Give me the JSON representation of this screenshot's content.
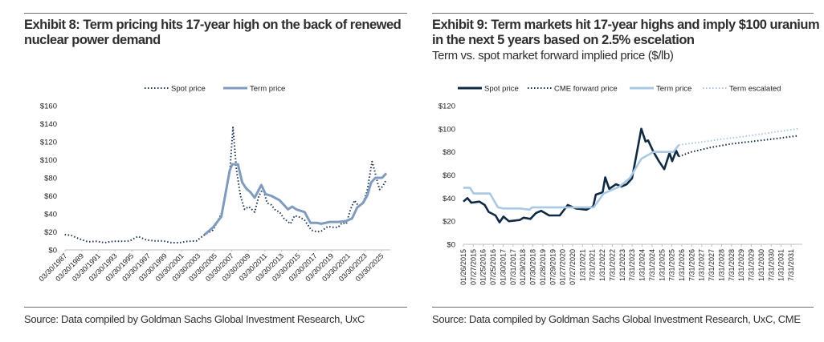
{
  "left": {
    "title": "Exhibit 8: Term pricing hits 17-year high on the back of renewed nuclear power demand",
    "source": "Source: Data compiled by Goldman Sachs Global Investment Research, UxC"
  },
  "right": {
    "title": "Exhibit 9: Term markets hit 17-year highs and imply $100 uranium in the next 5 years based on 2.5% escelation",
    "subtitle": "Term vs. spot market forward implied price ($/lb)",
    "source": "Source: Data compiled by Goldman Sachs Global Investment Research, UxC, CME"
  },
  "chart_data": [
    {
      "type": "line",
      "title": "",
      "xlabel": "",
      "ylabel": "",
      "ylim": [
        0,
        160
      ],
      "yticks": [
        "$0",
        "$20",
        "$40",
        "$60",
        "$80",
        "$100",
        "$120",
        "$140",
        "$160"
      ],
      "xlim": [
        1987.24,
        2025.9
      ],
      "xticks": [
        "03/30/1987",
        "03/30/1989",
        "03/30/1991",
        "03/30/1993",
        "03/30/1995",
        "03/30/1997",
        "03/30/1999",
        "03/30/2001",
        "03/30/2003",
        "03/30/2005",
        "03/30/2007",
        "03/30/2009",
        "03/30/2011",
        "03/30/2013",
        "03/30/2015",
        "03/30/2017",
        "03/30/2019",
        "03/30/2021",
        "03/30/2023",
        "03/30/2025"
      ],
      "grid": false,
      "legend": "top",
      "series": [
        {
          "name": "Spot price",
          "style": "dotted",
          "color": "#1f3550",
          "x": [
            1987.2,
            1988,
            1989,
            1990,
            1991,
            1992,
            1993,
            1994,
            1995,
            1996,
            1997,
            1998,
            1999,
            2000,
            2001,
            2002,
            2003,
            2004,
            2005,
            2006,
            2007,
            2007.4,
            2007.8,
            2008.3,
            2008.8,
            2009.3,
            2010,
            2010.5,
            2011,
            2011.5,
            2012,
            2012.5,
            2013,
            2013.5,
            2014.3,
            2014.8,
            2015.5,
            2016,
            2016.8,
            2017.5,
            2018,
            2018.8,
            2019.5,
            2020,
            2020.5,
            2021,
            2021.5,
            2022,
            2022.5,
            2023,
            2023.5,
            2024.1,
            2024.4,
            2024.8,
            2025,
            2025.4,
            2025.8
          ],
          "y": [
            17,
            16,
            12,
            9,
            9.5,
            8,
            9.5,
            9.5,
            10,
            15,
            11,
            10,
            10,
            8,
            8,
            9.5,
            10,
            17,
            22,
            40,
            85,
            136,
            90,
            60,
            45,
            48,
            42,
            60,
            68,
            52,
            50,
            44,
            42,
            35,
            29,
            38,
            36,
            33,
            22,
            20,
            21,
            26,
            25,
            25,
            30,
            29,
            45,
            55,
            48,
            52,
            65,
            98,
            88,
            73,
            67,
            71,
            78
          ]
        },
        {
          "name": "Term price",
          "style": "solid",
          "color": "#7f9bbd",
          "x": [
            2004,
            2005,
            2006,
            2007,
            2007.3,
            2008,
            2008.5,
            2009,
            2009.5,
            2010,
            2010.8,
            2011.3,
            2012,
            2013,
            2014,
            2014.5,
            2015,
            2016,
            2016.7,
            2017.5,
            2018,
            2019,
            2020,
            2021,
            2021.7,
            2022.3,
            2023,
            2023.5,
            2024,
            2024.5,
            2025.3,
            2025.8
          ],
          "y": [
            17,
            25,
            37,
            88,
            95,
            95,
            75,
            68,
            64,
            58,
            72,
            62,
            60,
            55,
            45,
            48,
            45,
            42,
            30,
            30,
            29,
            31,
            31,
            32,
            35,
            47,
            52,
            60,
            75,
            80,
            80,
            85
          ]
        }
      ]
    },
    {
      "type": "line",
      "title": "Term vs. spot market forward implied price ($/lb)",
      "xlabel": "",
      "ylabel": "",
      "ylim": [
        0,
        120
      ],
      "yticks": [
        "$0",
        "$20",
        "$40",
        "$60",
        "$80",
        "$100",
        "$120"
      ],
      "xlim": [
        2015.07,
        2031.9
      ],
      "xticks": [
        "01/26/2015",
        "07/27/2015",
        "01/25/2016",
        "07/25/2016",
        "01/30/2017",
        "07/31/2017",
        "01/29/2018",
        "07/30/2018",
        "01/28/2019",
        "07/29/2019",
        "01/27/2020",
        "07/27/2020",
        "1/31/2021",
        "7/31/2021",
        "1/31/2022",
        "7/31/2022",
        "1/31/2023",
        "7/31/2023",
        "1/31/2024",
        "7/31/2024",
        "1/31/2025",
        "7/31/2025",
        "1/31/2026",
        "7/31/2026",
        "1/31/2027",
        "7/31/2027",
        "1/31/2028",
        "7/31/2028",
        "1/31/2029",
        "7/31/2029",
        "1/31/2030",
        "7/31/2030",
        "1/31/2031",
        "7/31/2031"
      ],
      "grid": false,
      "legend": "top",
      "series": [
        {
          "name": "Spot price",
          "style": "solid",
          "color": "#102a44",
          "x": [
            2015.07,
            2015.27,
            2015.47,
            2015.87,
            2016.14,
            2016.34,
            2016.68,
            2016.88,
            2017.08,
            2017.35,
            2017.89,
            2018.09,
            2018.43,
            2018.7,
            2018.97,
            2019.37,
            2019.9,
            2020.3,
            2020.71,
            2021.24,
            2021.58,
            2021.71,
            2022.05,
            2022.18,
            2022.38,
            2022.72,
            2022.99,
            2023.26,
            2023.52,
            2023.72,
            2023.99,
            2024.2,
            2024.33,
            2024.6,
            2024.87,
            2025.14,
            2025.4,
            2025.54,
            2025.74,
            2025.87
          ],
          "y": [
            37,
            40,
            36,
            37,
            34,
            28,
            25,
            19,
            24,
            20,
            21,
            23,
            22,
            27,
            29,
            25,
            25,
            34,
            31,
            30,
            33,
            43,
            45,
            58,
            48,
            52,
            50,
            52,
            57,
            75,
            100,
            89,
            90,
            80,
            72,
            65,
            79,
            72,
            81,
            76
          ]
        },
        {
          "name": "CME forward price",
          "style": "dotted",
          "color": "#102a44",
          "x": [
            2025.87,
            2026.5,
            2027.5,
            2028.5,
            2029.5,
            2030.5,
            2031.85
          ],
          "y": [
            76,
            80,
            84,
            87,
            89,
            91,
            94
          ]
        },
        {
          "name": "Term price",
          "style": "solid",
          "color": "#a9c8e4",
          "x": [
            2015.06,
            2015.4,
            2015.58,
            2016.4,
            2016.8,
            2017.07,
            2017.9,
            2018.4,
            2018.5,
            2021.6,
            2022.1,
            2022.9,
            2023.4,
            2023.99,
            2024.6,
            2025.6,
            2025.87
          ],
          "y": [
            49,
            49,
            44,
            44,
            32,
            31,
            31,
            30,
            32,
            32,
            44,
            50,
            57,
            74,
            80,
            80,
            86
          ]
        },
        {
          "name": "Term escalated",
          "style": "dotted",
          "color": "#a9c8e4",
          "x": [
            2025.87,
            2027,
            2028,
            2029,
            2030,
            2031,
            2031.85
          ],
          "y": [
            86,
            88.5,
            91,
            93,
            95.5,
            98,
            100
          ]
        }
      ]
    }
  ]
}
